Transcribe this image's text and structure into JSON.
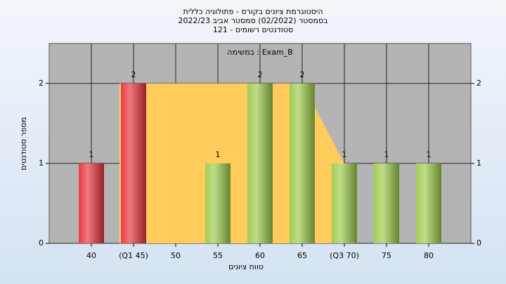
{
  "chart_data": {
    "type": "bar",
    "title": [
      "היסטוגרמת ציונים בקורס - פתולוגיה כללית",
      "בסמסטר  (02/2022)  סמסטר אביב 2022/23",
      "סטודנטים רשומים - 121"
    ],
    "annotation": "במשימה : Exam_B",
    "x_label": "טווח ציונים",
    "y_label": "מספר סטודנטים",
    "categories": [
      "40",
      "(Q1 45)",
      "50",
      "55",
      "60",
      "65",
      "(Q3 70)",
      "75",
      "80"
    ],
    "values": [
      1,
      2,
      0,
      1,
      2,
      2,
      1,
      1,
      1
    ],
    "value_labels": [
      "1",
      "2",
      null,
      "1",
      "2",
      "2",
      "1",
      "1",
      "1"
    ],
    "colors": [
      "#e8323c",
      "#e8323c",
      "#9dca4a",
      "#9dca4a",
      "#9dca4a",
      "#9dca4a",
      "#9dca4a",
      "#9dca4a",
      "#9dca4a"
    ],
    "area": {
      "color": "#ffcc5c",
      "values": [
        null,
        2,
        2,
        2,
        2,
        2,
        1,
        null,
        null
      ]
    },
    "ylim": [
      0,
      2.5
    ],
    "yticks": [
      0,
      1,
      2
    ],
    "grid": true,
    "background": "#b4b4b4"
  }
}
